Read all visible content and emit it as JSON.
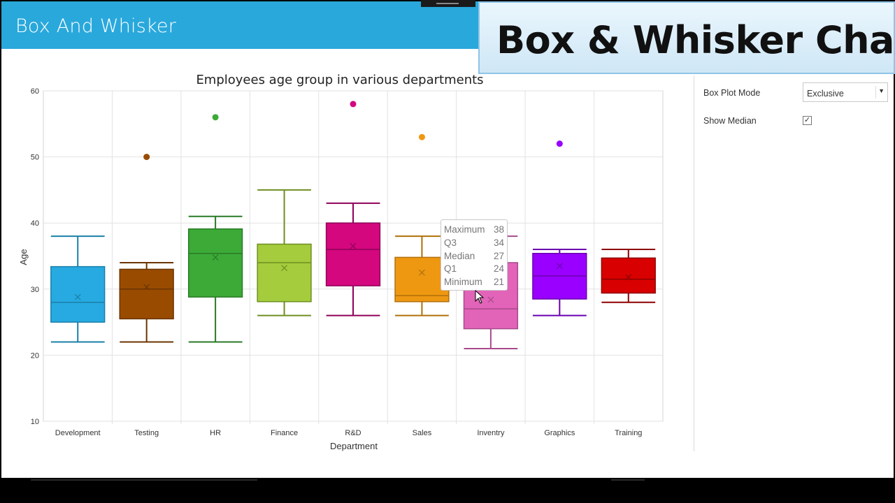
{
  "app": {
    "title": "Box And Whisker"
  },
  "overlay": {
    "text": "Box & Whisker Chart"
  },
  "properties": {
    "box_plot_mode_label": "Box Plot Mode",
    "box_plot_mode_value": "Exclusive",
    "show_median_label": "Show Median",
    "show_median_checked": "✓"
  },
  "tooltip": {
    "rows": [
      {
        "label": "Maximum",
        "value": "38"
      },
      {
        "label": "Q3",
        "value": "34"
      },
      {
        "label": "Median",
        "value": "27"
      },
      {
        "label": "Q1",
        "value": "24"
      },
      {
        "label": "Minimum",
        "value": "21"
      }
    ]
  },
  "chart_data": {
    "type": "box",
    "title": "Employees age group in various departments",
    "xlabel": "Department",
    "ylabel": "Age",
    "ylim": [
      10,
      60
    ],
    "yticks": [
      10,
      20,
      30,
      40,
      50,
      60
    ],
    "grid": true,
    "categories": [
      "Development",
      "Testing",
      "HR",
      "Finance",
      "R&D",
      "Sales",
      "Inventry",
      "Graphics",
      "Training"
    ],
    "colors": [
      "#27aae1",
      "#994c00",
      "#3daa38",
      "#a4cc3c",
      "#d4077f",
      "#ee9812",
      "#e264b9",
      "#9900ff",
      "#d80000"
    ],
    "strokes": [
      "#1a7fa8",
      "#6b3400",
      "#2a7a27",
      "#6f8f22",
      "#8f0057",
      "#b0700a",
      "#a84a8a",
      "#6a00b0",
      "#8f0000"
    ],
    "boxes": [
      {
        "min": 22,
        "q1": 25,
        "median": 28,
        "q3": 33.4,
        "max": 38,
        "mean": 28.8,
        "outliers": []
      },
      {
        "min": 22,
        "q1": 25.5,
        "median": 30,
        "q3": 33,
        "max": 34,
        "mean": 30.3,
        "outliers": [
          50
        ]
      },
      {
        "min": 22,
        "q1": 28.8,
        "median": 35.4,
        "q3": 39.1,
        "max": 41,
        "mean": 34.8,
        "outliers": [
          56
        ]
      },
      {
        "min": 26,
        "q1": 28.1,
        "median": 34,
        "q3": 36.8,
        "max": 45,
        "mean": 33.2,
        "outliers": []
      },
      {
        "min": 26,
        "q1": 30.5,
        "median": 36,
        "q3": 40,
        "max": 43,
        "mean": 36.5,
        "outliers": [
          58
        ]
      },
      {
        "min": 26,
        "q1": 28.1,
        "median": 29,
        "q3": 34.8,
        "max": 38,
        "mean": 32.5,
        "outliers": [
          53
        ]
      },
      {
        "min": 21,
        "q1": 24,
        "median": 27,
        "q3": 34,
        "max": 38,
        "mean": 28.4,
        "outliers": []
      },
      {
        "min": 26,
        "q1": 28.5,
        "median": 32,
        "q3": 35.4,
        "max": 36,
        "mean": 33.5,
        "outliers": [
          52
        ]
      },
      {
        "min": 28,
        "q1": 29.4,
        "median": 31.5,
        "q3": 34.7,
        "max": 36,
        "mean": 31.8,
        "outliers": []
      }
    ]
  }
}
